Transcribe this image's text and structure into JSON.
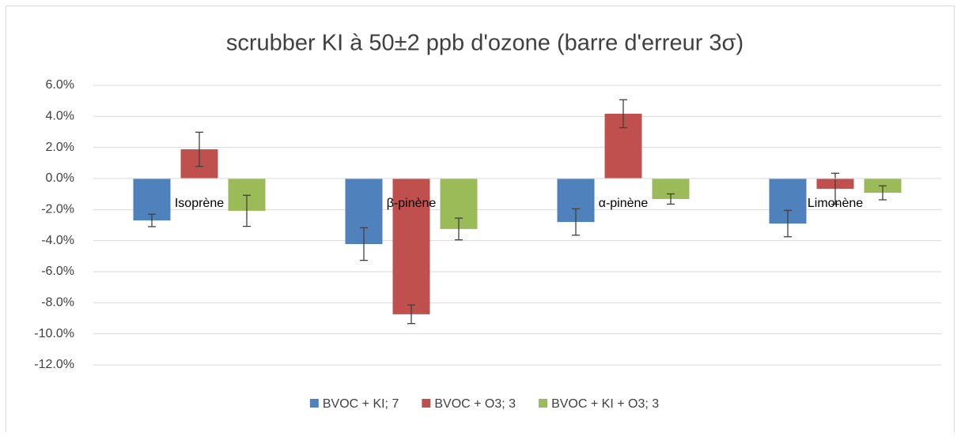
{
  "chart_data": {
    "type": "bar",
    "title": "scrubber KI à 50±2 ppb d'ozone (barre d'erreur 3σ)",
    "categories": [
      "Isoprène",
      "β-pinène",
      "α-pinène",
      "Limonène"
    ],
    "series": [
      {
        "name": "BVOC + KI; 7",
        "color": "#4f81bd",
        "values": [
          -2.7,
          -4.22,
          -2.8,
          -2.9
        ],
        "errors": [
          0.4,
          1.05,
          0.85,
          0.85
        ]
      },
      {
        "name": "BVOC + O3; 3",
        "color": "#c0504d",
        "values": [
          1.88,
          -8.74,
          4.17,
          -0.66
        ],
        "errors": [
          1.1,
          0.6,
          0.9,
          1.0
        ]
      },
      {
        "name": "BVOC + KI + O3; 3",
        "color": "#9bbb59",
        "values": [
          -2.08,
          -3.25,
          -1.32,
          -0.92
        ],
        "errors": [
          1.0,
          0.7,
          0.33,
          0.45
        ]
      }
    ],
    "ylim": [
      -12,
      6
    ],
    "yticks": [
      {
        "value": -12,
        "label": "-12.0%"
      },
      {
        "value": -10,
        "label": "-10.0%"
      },
      {
        "value": -8,
        "label": "-8.0%"
      },
      {
        "value": -6,
        "label": "-6.0%"
      },
      {
        "value": -4,
        "label": "-4.0%"
      },
      {
        "value": -2,
        "label": "-2.0%"
      },
      {
        "value": 0,
        "label": "0.0%"
      },
      {
        "value": 2,
        "label": "2.0%"
      },
      {
        "value": 4,
        "label": "4.0%"
      },
      {
        "value": 6,
        "label": "6.0%"
      }
    ],
    "grid": true,
    "legend": "bottom"
  }
}
